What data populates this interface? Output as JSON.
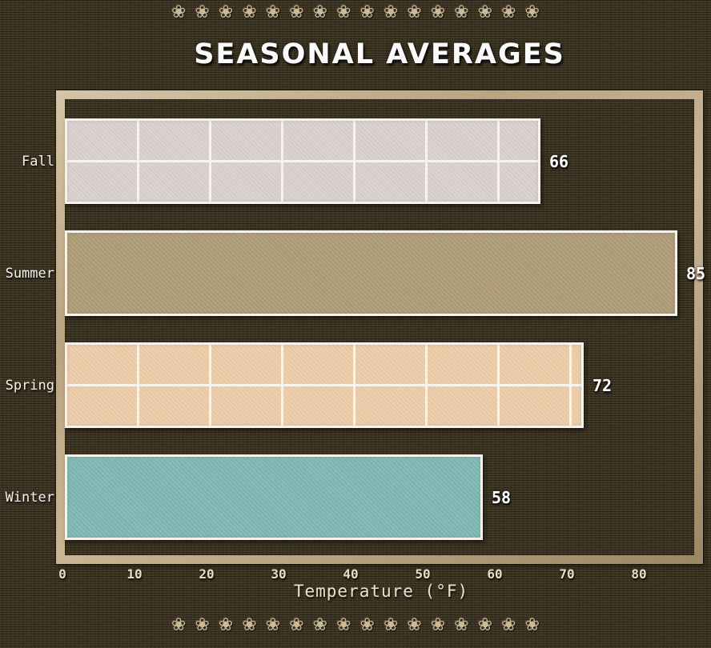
{
  "title": {
    "text": "SEASONAL AVERAGES",
    "color": "#fbfbfb"
  },
  "decor": {
    "flower_glyph": "❀",
    "count": 16,
    "color": "#c9b28c"
  },
  "theme": {
    "background": "#39311f",
    "frame_color": "#b1997b",
    "bar_border_color": "#f5f1ea",
    "label_color": "#f3efe7",
    "tick_color": "#e6d9bd",
    "value_color": "#ffffff"
  },
  "chart_data": {
    "type": "bar",
    "orientation": "horizontal",
    "title": "SEASONAL AVERAGES",
    "categories": [
      "Fall",
      "Summer",
      "Spring",
      "Winter"
    ],
    "values": [
      66,
      85,
      72,
      58
    ],
    "value_labels": [
      "66",
      "85",
      "72",
      "58"
    ],
    "bar_colors": [
      "#d6cccb",
      "#a7936d",
      "#ebc8a1",
      "#74b1ae"
    ],
    "bar_patterns": [
      "grid",
      "plain",
      "grid",
      "plain"
    ],
    "xlabel": "Temperature (°F)",
    "ylabel": "",
    "xlim": [
      0,
      86.5
    ],
    "xticks": [
      0,
      10,
      20,
      30,
      40,
      50,
      60,
      70,
      80
    ],
    "grid": false,
    "legend": false
  }
}
